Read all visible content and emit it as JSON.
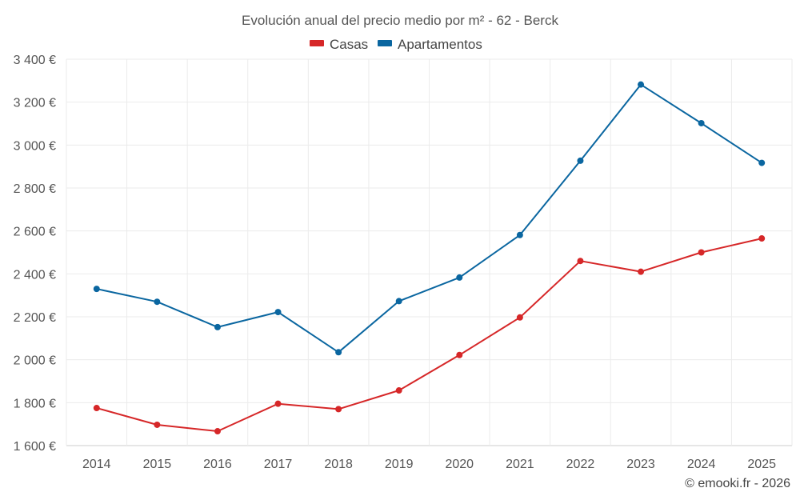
{
  "chart_data": {
    "type": "line",
    "title": "Evolución anual del precio medio por m² - 62 - Berck",
    "categories": [
      "2014",
      "2015",
      "2016",
      "2017",
      "2018",
      "2019",
      "2020",
      "2021",
      "2022",
      "2023",
      "2024",
      "2025"
    ],
    "series": [
      {
        "name": "Casas",
        "color": "#d62728",
        "values": [
          1775,
          1697,
          1667,
          1795,
          1770,
          1857,
          2022,
          2197,
          2460,
          2410,
          2500,
          2565
        ]
      },
      {
        "name": "Apartamentos",
        "color": "#0a66a0",
        "values": [
          2330,
          2270,
          2152,
          2222,
          2035,
          2273,
          2383,
          2581,
          2927,
          3282,
          3102,
          2917
        ]
      }
    ],
    "ylim": [
      1600,
      3400
    ],
    "yticks": [
      1600,
      1800,
      2000,
      2200,
      2400,
      2600,
      2800,
      3000,
      3200,
      3400
    ],
    "ytick_labels": [
      "1 600 €",
      "1 800 €",
      "2 000 €",
      "2 200 €",
      "2 400 €",
      "2 600 €",
      "2 800 €",
      "3 000 €",
      "3 200 €",
      "3 400 €"
    ],
    "xlabel": "",
    "ylabel": "",
    "grid": true,
    "legend_position": "top-center"
  },
  "credit": "© emooki.fr - 2026"
}
